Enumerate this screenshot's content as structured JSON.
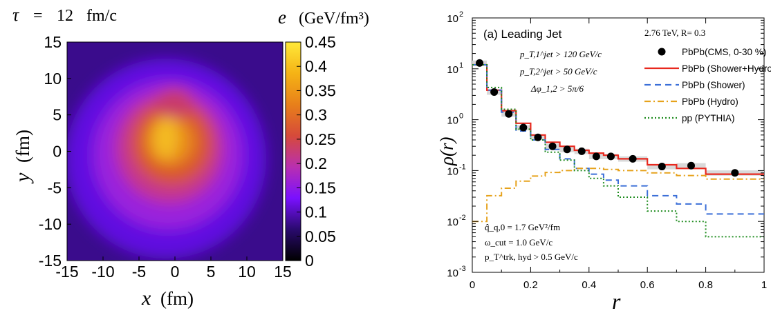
{
  "chart_data": [
    {
      "type": "heatmap",
      "title_prefix": "τ",
      "title_equals": "=",
      "title_value": "12",
      "title_unit": "fm/c",
      "xlabel": "x",
      "xlabel_unit": "(fm)",
      "ylabel": "y",
      "ylabel_unit": "(fm)",
      "xlim": [
        -15,
        15
      ],
      "ylim": [
        -15,
        15
      ],
      "x_ticks": [
        "-15",
        "-10",
        "-5",
        "0",
        "5",
        "10",
        "15"
      ],
      "y_ticks": [
        "15",
        "10",
        "5",
        "0",
        "-5",
        "-10",
        "-15"
      ],
      "colorbar_label": "e",
      "colorbar_unit": "(GeV/fm³)",
      "colorbar_range": [
        0,
        0.45
      ],
      "colorbar_ticks": [
        "0.45",
        "0.4",
        "0.35",
        "0.3",
        "0.25",
        "0.2",
        "0.15",
        "0.1",
        "0.05",
        "0"
      ],
      "colormap": [
        "#000000",
        "#2a0a6e",
        "#7a10ff",
        "#b92fb0",
        "#d64a3a",
        "#e8801a",
        "#f5b315",
        "#ffe93a"
      ]
    },
    {
      "type": "line",
      "panel_label": "(a) Leading Jet",
      "xlabel": "r",
      "ylabel": "ρ(r)",
      "xlim": [
        0,
        1
      ],
      "ylim_log10": [
        -3,
        2
      ],
      "log_y": true,
      "x_ticks": [
        "0",
        "0.2",
        "0.4",
        "0.6",
        "0.8",
        "1"
      ],
      "y_tick_base": "10",
      "y_tick_exps": [
        "2",
        "1",
        "0",
        "-1",
        "-2",
        "-3"
      ],
      "annotations_left": [
        "p_T,1^jet > 120 GeV/c",
        "p_T,2^jet > 50 GeV/c",
        "Δφ_1,2 > 5π/6"
      ],
      "annotations_bottom": [
        "q̂_q,0 = 1.7 GeV²/fm",
        "ω_cut = 1.0 GeV/c",
        "p_T^trk, hyd > 0.5 GeV/c"
      ],
      "annotation_energy": "2.76 TeV, R= 0.3",
      "bin_edges": [
        0,
        0.05,
        0.1,
        0.15,
        0.2,
        0.25,
        0.3,
        0.35,
        0.4,
        0.45,
        0.5,
        0.6,
        0.7,
        0.8,
        1.0
      ],
      "series": [
        {
          "name": "PbPb(CMS, 0-30 %)",
          "style": "points",
          "color": "#000000",
          "x": [
            0.025,
            0.075,
            0.125,
            0.175,
            0.225,
            0.275,
            0.325,
            0.375,
            0.425,
            0.475,
            0.55,
            0.65,
            0.75,
            0.9
          ],
          "y": [
            13,
            3.5,
            1.3,
            0.7,
            0.45,
            0.3,
            0.26,
            0.24,
            0.19,
            0.19,
            0.17,
            0.12,
            0.125,
            0.09
          ]
        },
        {
          "name": "PbPb (Shower+Hydro)",
          "style": "solid",
          "color": "#e8281e",
          "y": [
            12,
            3.8,
            1.5,
            0.85,
            0.5,
            0.36,
            0.3,
            0.25,
            0.22,
            0.2,
            0.17,
            0.13,
            0.11,
            0.085
          ]
        },
        {
          "name": "PbPb (Shower)",
          "style": "dashed",
          "color": "#3b6fd8",
          "y": [
            12,
            3.8,
            1.4,
            0.6,
            0.4,
            0.26,
            0.17,
            0.11,
            0.085,
            0.065,
            0.05,
            0.032,
            0.022,
            0.014
          ]
        },
        {
          "name": "PbPb (Hydro)",
          "style": "dashdot",
          "color": "#e6a21c",
          "y": [
            0.01,
            0.032,
            0.045,
            0.062,
            0.078,
            0.092,
            0.1,
            0.11,
            0.11,
            0.105,
            0.1,
            0.09,
            0.08,
            0.068
          ]
        },
        {
          "name": "pp (PYTHIA)",
          "style": "dotted",
          "color": "#1e8c1e",
          "y": [
            12,
            4.3,
            1.6,
            0.65,
            0.4,
            0.23,
            0.16,
            0.1,
            0.07,
            0.05,
            0.03,
            0.016,
            0.01,
            0.005
          ]
        }
      ]
    }
  ]
}
